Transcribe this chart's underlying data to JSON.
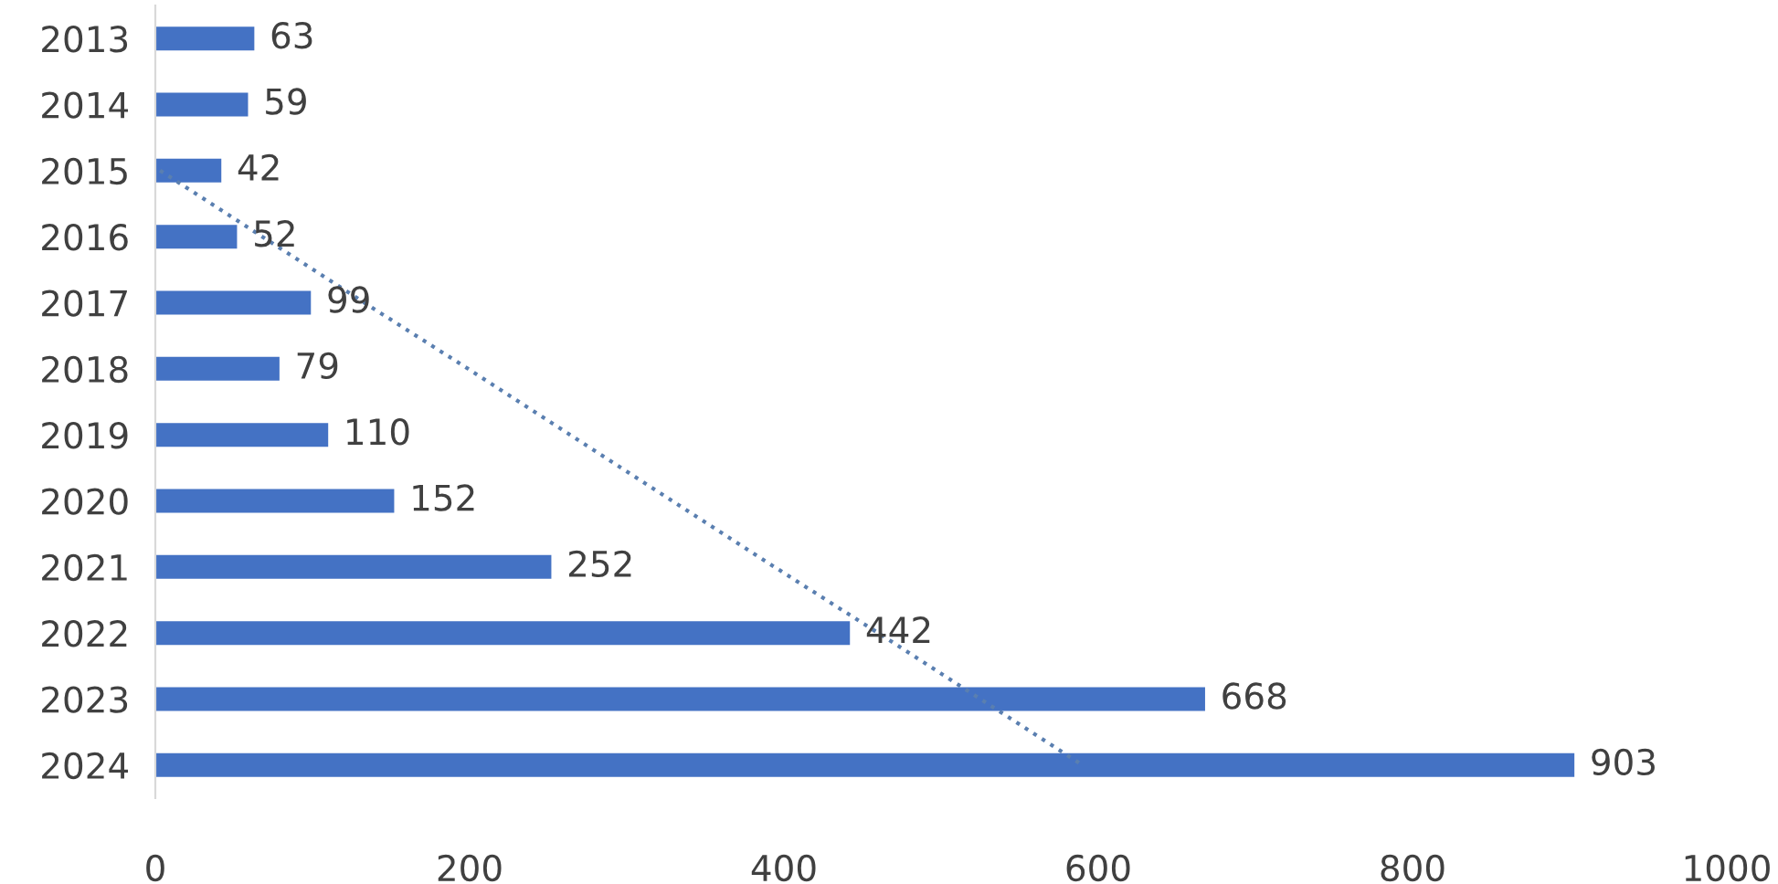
{
  "chart_data": {
    "type": "bar",
    "orientation": "horizontal",
    "categories": [
      "2013",
      "2014",
      "2015",
      "2016",
      "2017",
      "2018",
      "2019",
      "2020",
      "2021",
      "2022",
      "2023",
      "2024"
    ],
    "values": [
      63,
      59,
      42,
      52,
      99,
      79,
      110,
      152,
      252,
      442,
      668,
      903
    ],
    "color": "#4472c4",
    "value_labels": [
      "63",
      "59",
      "42",
      "52",
      "99",
      "79",
      "110",
      "152",
      "252",
      "442",
      "668",
      "903"
    ],
    "xlim": [
      0,
      1000
    ],
    "xticks": [
      0,
      200,
      400,
      600,
      800,
      1000
    ],
    "grid": false,
    "legend": false,
    "series": [
      {
        "type": "line",
        "values": [
          null,
          null,
          3,
          68,
          133,
          199,
          264,
          329,
          394,
          460,
          525,
          590
        ],
        "color": "#5a7fb0",
        "line_style": "dotted"
      }
    ]
  }
}
